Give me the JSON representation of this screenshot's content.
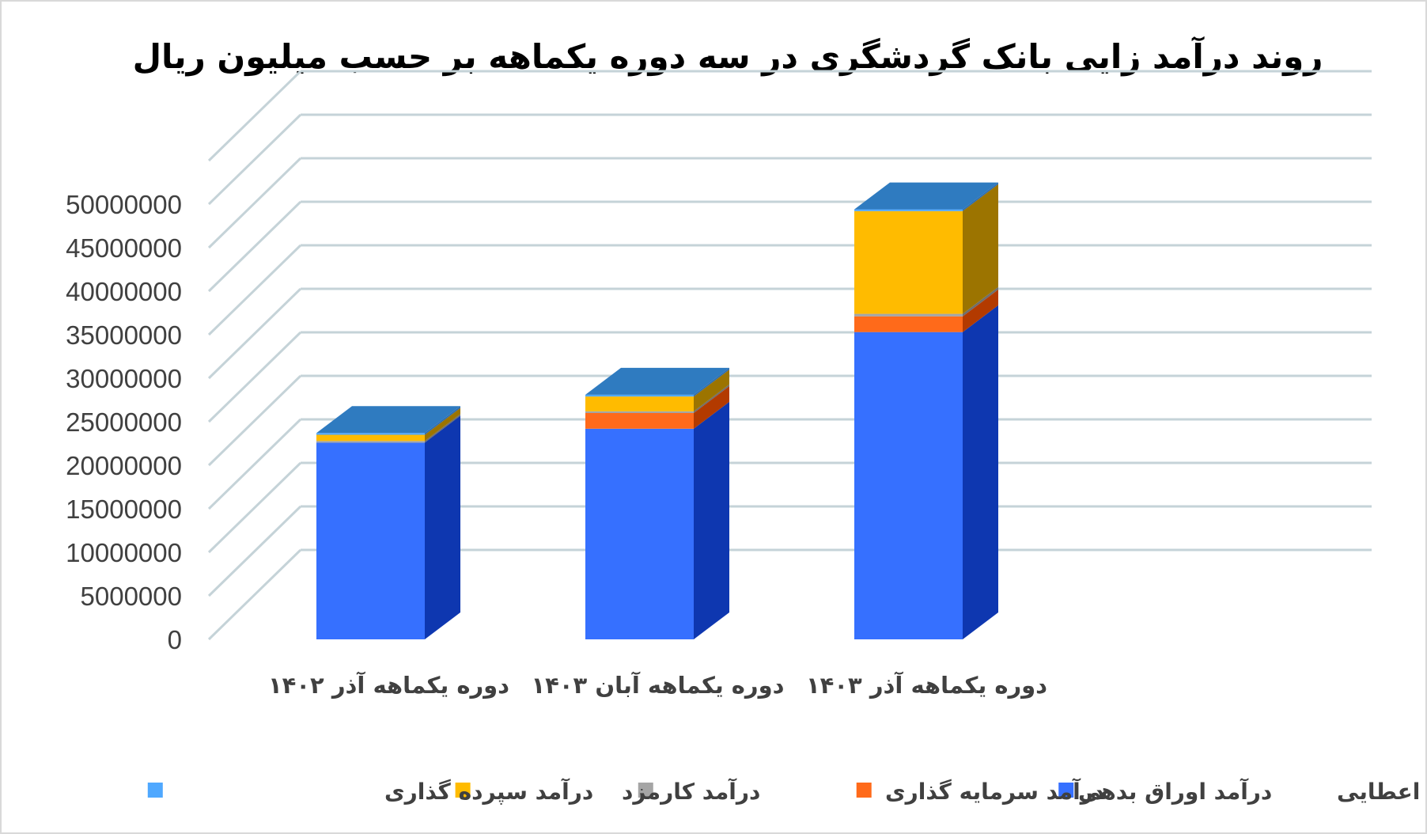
{
  "chart_data": {
    "type": "bar",
    "stacked": true,
    "three_d": true,
    "title": "روند درآمد زایی بانک گردشگری در سه دوره یکماهه بر حسب میلیون ریال",
    "categories": [
      "دوره یکماهه آذر ۱۴۰۲",
      "دوره یکماهه آبان ۱۴۰۳",
      "دوره یکماهه آذر ۱۴۰۳"
    ],
    "series": [
      {
        "name": "درآمد تسهیلات اعطایی",
        "color": "#3670FF",
        "side_color": "#0E37B0",
        "values": [
          22600000,
          24200000,
          35300000
        ]
      },
      {
        "name": "درآمد اوراق بدهی",
        "color": "#FF6A1A",
        "side_color": "#B33A00",
        "values": [
          0,
          1800000,
          1800000
        ]
      },
      {
        "name": "درآمد سرمایه گذاری",
        "color": "#A5A5A5",
        "side_color": "#6E6E6E",
        "values": [
          200000,
          200000,
          300000
        ]
      },
      {
        "name": "درآمد کارمزد",
        "color": "#FFBB00",
        "side_color": "#9C7400",
        "values": [
          700000,
          1700000,
          11800000
        ]
      },
      {
        "name": "درآمد سپرده گذاری",
        "color": "#4FA8FF",
        "side_color": "#2C6CB0",
        "values": [
          200000,
          200000,
          200000
        ]
      }
    ],
    "top_color": "#2F7BC0",
    "y_ticks": [
      "0",
      "5000000",
      "10000000",
      "15000000",
      "20000000",
      "25000000",
      "30000000",
      "35000000",
      "40000000",
      "45000000",
      "50000000"
    ],
    "ylim": [
      0,
      50000000
    ],
    "grid": true,
    "legend_position": "bottom",
    "xlabel": "",
    "ylabel": ""
  }
}
